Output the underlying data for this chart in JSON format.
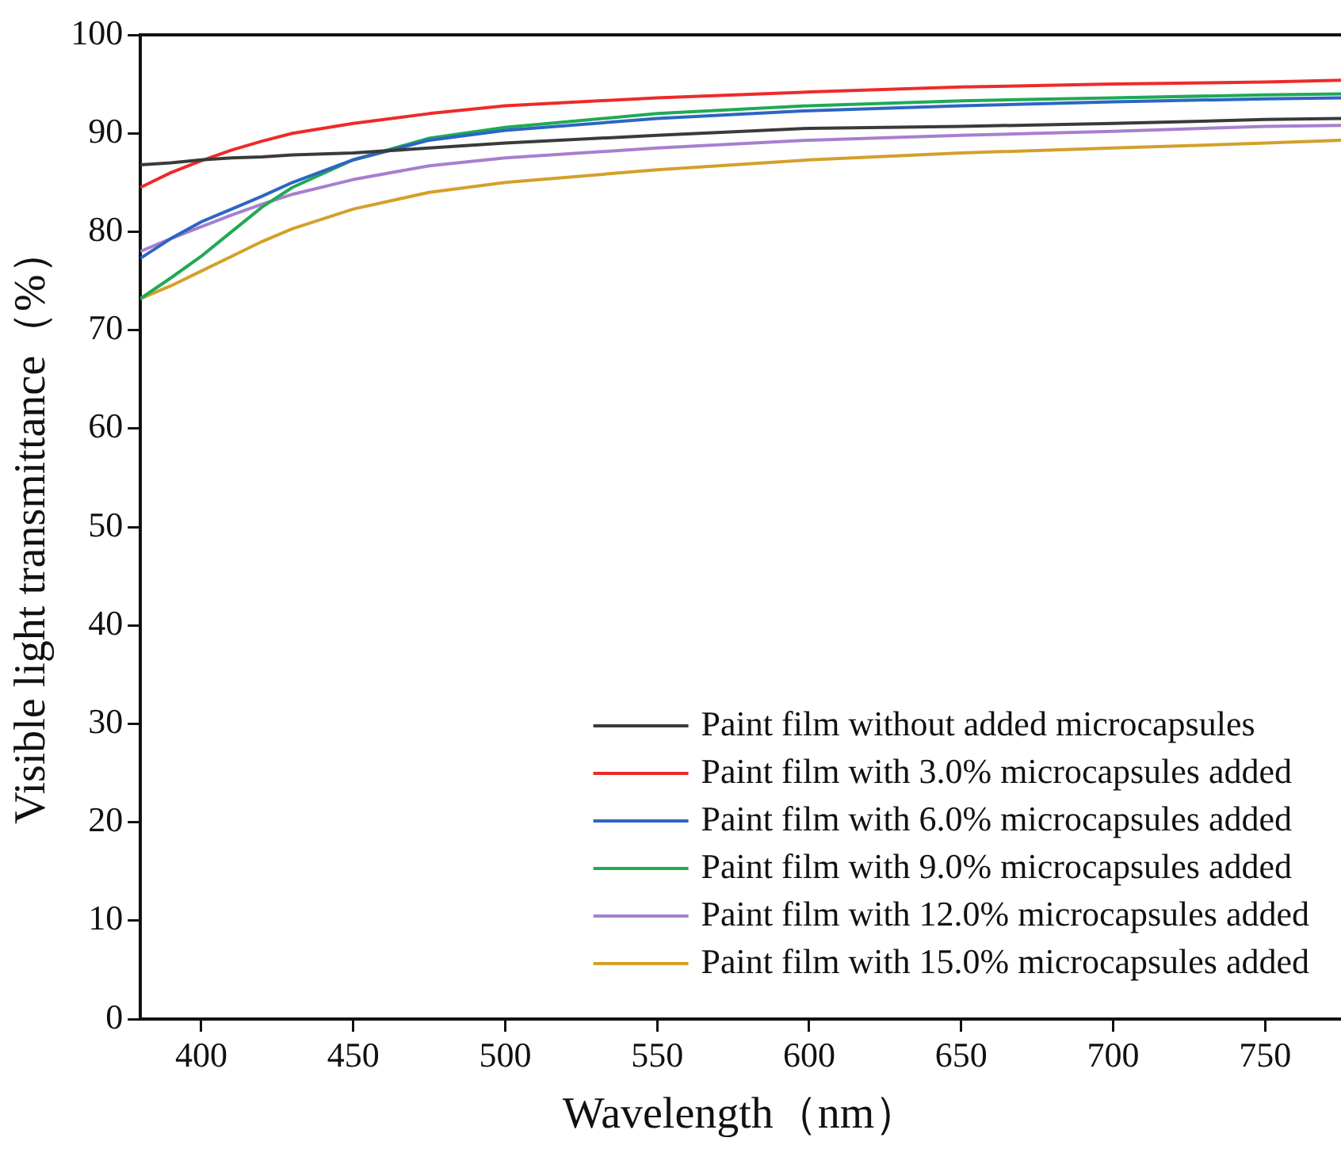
{
  "chart_data": {
    "type": "line",
    "xlabel": "Wavelength（nm）",
    "ylabel": "Visible light transmittance（%）",
    "xlim": [
      380,
      775
    ],
    "xticks": [
      400,
      450,
      500,
      550,
      600,
      650,
      700,
      750
    ],
    "ylim": [
      0,
      100
    ],
    "yticks": [
      0,
      10,
      20,
      30,
      40,
      50,
      60,
      70,
      80,
      90,
      100
    ],
    "grid": false,
    "legend": "bottom right",
    "marker": "none",
    "line_style": "solid",
    "x": [
      380,
      390,
      400,
      410,
      420,
      430,
      450,
      475,
      500,
      550,
      600,
      650,
      700,
      750,
      775
    ],
    "series": [
      {
        "name": "Paint film without added microcapsules",
        "color": "#3a3a3a",
        "values": [
          86.8,
          87,
          87.3,
          87.5,
          87.6,
          87.8,
          88,
          88.5,
          89,
          89.8,
          90.5,
          90.7,
          91,
          91.4,
          91.5
        ]
      },
      {
        "name": "Paint film with 3.0% microcapsules added",
        "color": "#ee2a2a",
        "values": [
          84.5,
          86,
          87.2,
          88.3,
          89.2,
          90,
          91,
          92,
          92.8,
          93.6,
          94.2,
          94.7,
          95,
          95.2,
          95.4
        ]
      },
      {
        "name": "Paint film with 6.0% microcapsules added",
        "color": "#2c65c4",
        "values": [
          77.3,
          79.3,
          81,
          82.3,
          83.6,
          85,
          87.3,
          89.3,
          90.3,
          91.5,
          92.3,
          92.8,
          93.2,
          93.5,
          93.6
        ]
      },
      {
        "name": "Paint film with 9.0% microcapsules added",
        "color": "#1faa55",
        "values": [
          73.2,
          75.3,
          77.5,
          80,
          82.5,
          84.5,
          87.3,
          89.5,
          90.6,
          92,
          92.8,
          93.3,
          93.6,
          93.9,
          94
        ]
      },
      {
        "name": "Paint film with 12.0% microcapsules added",
        "color": "#a77fcf",
        "values": [
          78,
          79.3,
          80.5,
          81.7,
          82.8,
          83.8,
          85.3,
          86.7,
          87.5,
          88.5,
          89.3,
          89.8,
          90.2,
          90.7,
          90.8
        ]
      },
      {
        "name": "Paint film with 15.0% microcapsules added",
        "color": "#d4a02a",
        "values": [
          73.2,
          74.5,
          76,
          77.5,
          79,
          80.3,
          82.3,
          84,
          85,
          86.3,
          87.3,
          88,
          88.5,
          89,
          89.3
        ]
      }
    ]
  }
}
